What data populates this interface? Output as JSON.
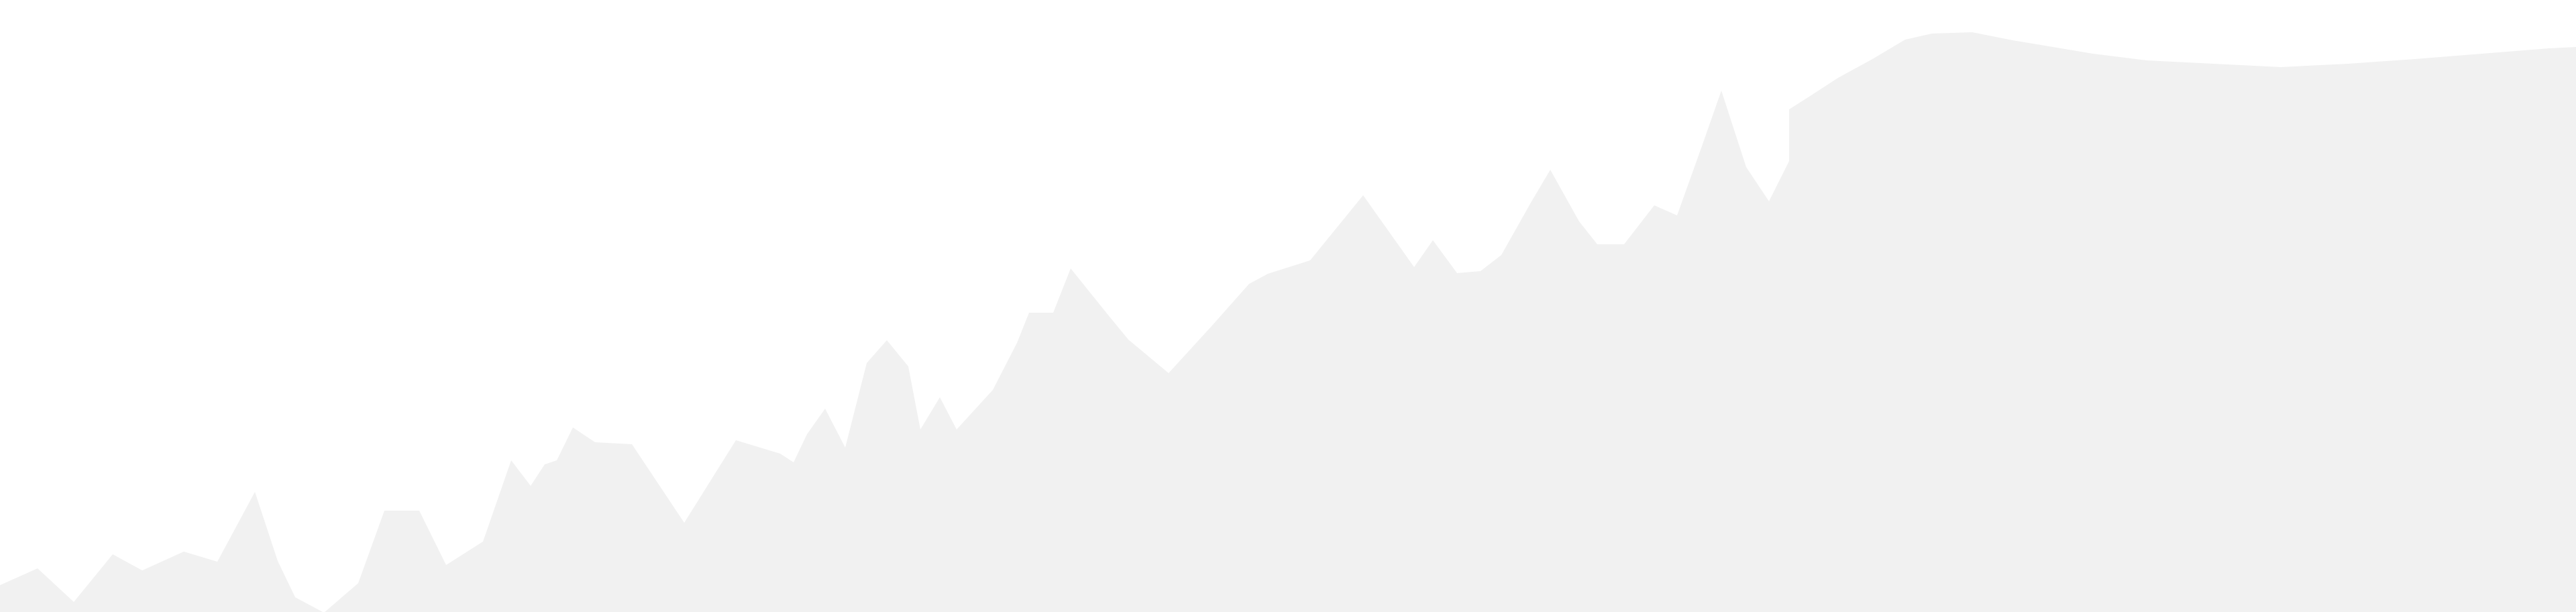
{
  "colors": {
    "sky": "#ffffff",
    "silhouette": "#f1f1f1"
  }
}
